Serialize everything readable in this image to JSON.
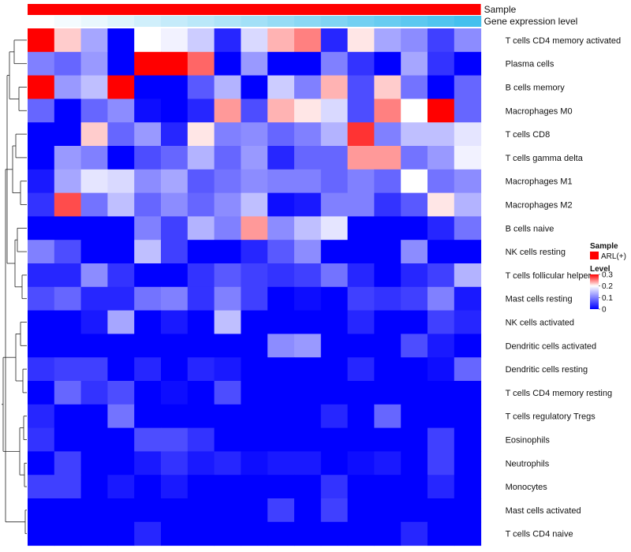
{
  "chart_data": {
    "type": "heatmap",
    "title": "",
    "annotation_tracks": [
      {
        "name": "Sample",
        "label": "Sample"
      },
      {
        "name": "Gene expression level",
        "label": "Gene expression level"
      }
    ],
    "rows": [
      "T cells CD4 memory activated",
      "Plasma cells",
      "B cells memory",
      "Macrophages M0",
      "T cells CD8",
      "T cells gamma delta",
      "Macrophages M1",
      "Macrophages M2",
      "B cells naive",
      "NK cells resting",
      "T cells follicular helper",
      "Mast cells resting",
      "NK cells activated",
      "Dendritic cells activated",
      "Dendritic cells resting",
      "T cells CD4 memory resting",
      "T cells regulatory  Tregs",
      "Eosinophils",
      "Neutrophils",
      "Monocytes",
      "Mast cells activated",
      "T cells CD4 naive"
    ],
    "values": [
      [
        0.3,
        0.22,
        0.13,
        0.0,
        0.2,
        0.19,
        0.16,
        0.03,
        0.17,
        0.23,
        0.25,
        0.03,
        0.21,
        0.13,
        0.11,
        0.05,
        0.11
      ],
      [
        0.1,
        0.08,
        0.12,
        0.0,
        0.3,
        0.3,
        0.26,
        0.0,
        0.12,
        0.0,
        0.0,
        0.1,
        0.04,
        0.0,
        0.13,
        0.04,
        0.0
      ],
      [
        0.3,
        0.12,
        0.15,
        0.3,
        0.0,
        0.0,
        0.07,
        0.14,
        0.0,
        0.16,
        0.1,
        0.23,
        0.06,
        0.22,
        0.09,
        0.0,
        0.08
      ],
      [
        0.08,
        0.0,
        0.08,
        0.11,
        0.01,
        0.0,
        0.03,
        0.24,
        0.06,
        0.23,
        0.21,
        0.17,
        0.06,
        0.25,
        0.2,
        0.3,
        0.08
      ],
      [
        0.0,
        0.0,
        0.22,
        0.08,
        0.12,
        0.03,
        0.21,
        0.1,
        0.11,
        0.08,
        0.1,
        0.14,
        0.28,
        0.1,
        0.15,
        0.15,
        0.18
      ],
      [
        0.0,
        0.12,
        0.1,
        0.0,
        0.06,
        0.08,
        0.14,
        0.08,
        0.12,
        0.03,
        0.08,
        0.08,
        0.24,
        0.24,
        0.09,
        0.12,
        0.19
      ],
      [
        0.02,
        0.13,
        0.18,
        0.17,
        0.11,
        0.13,
        0.07,
        0.09,
        0.11,
        0.1,
        0.1,
        0.08,
        0.1,
        0.08,
        0.2,
        0.09,
        0.11
      ],
      [
        0.04,
        0.27,
        0.09,
        0.15,
        0.08,
        0.11,
        0.08,
        0.11,
        0.15,
        0.01,
        0.02,
        0.1,
        0.1,
        0.04,
        0.07,
        0.21,
        0.14
      ],
      [
        0.0,
        0.0,
        0.0,
        0.0,
        0.1,
        0.05,
        0.14,
        0.1,
        0.24,
        0.11,
        0.15,
        0.18,
        0.0,
        0.0,
        0.0,
        0.03,
        0.09
      ],
      [
        0.1,
        0.06,
        0.0,
        0.0,
        0.15,
        0.05,
        0.0,
        0.0,
        0.03,
        0.07,
        0.11,
        0.0,
        0.0,
        0.0,
        0.11,
        0.0,
        0.0
      ],
      [
        0.03,
        0.03,
        0.11,
        0.04,
        0.0,
        0.0,
        0.04,
        0.07,
        0.05,
        0.04,
        0.05,
        0.09,
        0.03,
        0.0,
        0.03,
        0.05,
        0.14
      ],
      [
        0.06,
        0.08,
        0.03,
        0.03,
        0.09,
        0.1,
        0.04,
        0.1,
        0.05,
        0.0,
        0.01,
        0.0,
        0.05,
        0.04,
        0.05,
        0.1,
        0.02
      ],
      [
        0.0,
        0.0,
        0.02,
        0.13,
        0.0,
        0.02,
        0.0,
        0.15,
        0.0,
        0.0,
        0.0,
        0.0,
        0.03,
        0.0,
        0.0,
        0.05,
        0.03
      ],
      [
        0.0,
        0.0,
        0.0,
        0.0,
        0.0,
        0.0,
        0.0,
        0.0,
        0.0,
        0.11,
        0.12,
        0.0,
        0.0,
        0.0,
        0.06,
        0.02,
        0.0
      ],
      [
        0.04,
        0.05,
        0.05,
        0.0,
        0.03,
        0.0,
        0.03,
        0.02,
        0.0,
        0.0,
        0.0,
        0.0,
        0.03,
        0.0,
        0.0,
        0.01,
        0.08
      ],
      [
        0.0,
        0.08,
        0.04,
        0.06,
        0.0,
        0.01,
        0.0,
        0.06,
        0.0,
        0.0,
        0.0,
        0.0,
        0.0,
        0.0,
        0.0,
        0.0,
        0.0
      ],
      [
        0.03,
        0.0,
        0.0,
        0.09,
        0.0,
        0.0,
        0.0,
        0.0,
        0.0,
        0.0,
        0.0,
        0.03,
        0.0,
        0.08,
        0.0,
        0.0,
        0.0
      ],
      [
        0.04,
        0.0,
        0.0,
        0.0,
        0.06,
        0.06,
        0.04,
        0.0,
        0.0,
        0.0,
        0.0,
        0.0,
        0.0,
        0.0,
        0.0,
        0.05,
        0.0
      ],
      [
        0.0,
        0.05,
        0.0,
        0.0,
        0.02,
        0.04,
        0.02,
        0.03,
        0.01,
        0.02,
        0.02,
        0.0,
        0.01,
        0.02,
        0.0,
        0.05,
        0.0
      ],
      [
        0.05,
        0.05,
        0.0,
        0.02,
        0.0,
        0.02,
        0.0,
        0.0,
        0.0,
        0.0,
        0.0,
        0.04,
        0.0,
        0.0,
        0.0,
        0.03,
        0.0
      ],
      [
        0.0,
        0.0,
        0.0,
        0.0,
        0.0,
        0.0,
        0.0,
        0.0,
        0.0,
        0.05,
        0.0,
        0.05,
        0.0,
        0.0,
        0.0,
        0.0,
        0.0
      ],
      [
        0.0,
        0.0,
        0.0,
        0.0,
        0.03,
        0.0,
        0.0,
        0.0,
        0.0,
        0.0,
        0.0,
        0.0,
        0.0,
        0.0,
        0.03,
        0.0,
        0.0
      ]
    ],
    "sample_group": "ARL(+)",
    "gene_expression_level": [
      0.0,
      0.06,
      0.12,
      0.18,
      0.25,
      0.31,
      0.37,
      0.43,
      0.5,
      0.56,
      0.62,
      0.68,
      0.75,
      0.81,
      0.87,
      0.93,
      1.0
    ],
    "color_scale": {
      "min": 0,
      "max": 0.3,
      "low": "#0000ff",
      "mid": "#ffffff",
      "high": "#ff0000",
      "mid_value": 0.2
    },
    "legend": {
      "sample_title": "Sample",
      "sample_item": "ARL(+)",
      "sample_color": "#ff0000",
      "level_title": "Level",
      "level_ticks": [
        "0.3",
        "0.2",
        "0.1",
        "0"
      ],
      "level_tick_values": [
        0.3,
        0.2,
        0.1,
        0
      ]
    },
    "dendrogram": "row"
  }
}
